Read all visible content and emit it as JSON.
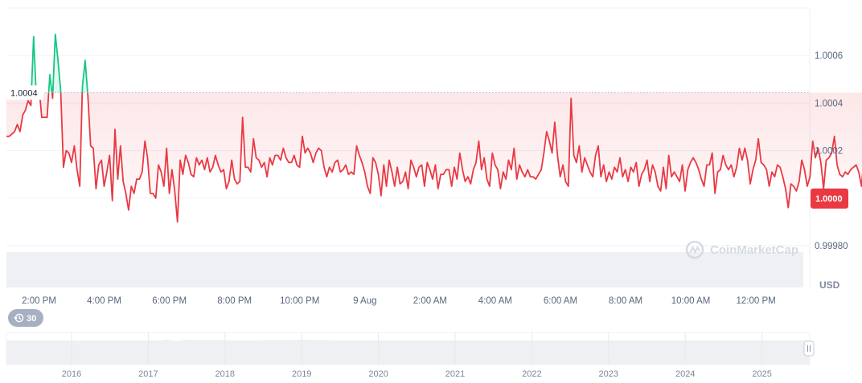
{
  "chart_data": {
    "type": "line",
    "currency_label": "USD",
    "watermark": "CoinMarketCap",
    "time_range_label": "30",
    "reference_label": "1.0004",
    "current_label": "1.0000",
    "y_ticks": [
      "1.0006",
      "1.0004",
      "1.0002",
      "1.0000",
      "0.99980"
    ],
    "y_tick_values": [
      1.0006,
      1.0004,
      1.0002,
      1.0,
      0.9998
    ],
    "ylim": [
      0.9998,
      1.0008
    ],
    "reference_value": 1.000444,
    "x_ticks": [
      "2:00 PM",
      "4:00 PM",
      "6:00 PM",
      "8:00 PM",
      "10:00 PM",
      "9 Aug",
      "2:00 AM",
      "4:00 AM",
      "6:00 AM",
      "8:00 AM",
      "10:00 AM",
      "12:00 PM"
    ],
    "x_tick_hours": [
      0,
      2,
      4,
      6,
      8,
      10,
      12,
      14,
      16,
      18,
      20,
      22
    ],
    "xlim_hours": [
      -1.0,
      23.65
    ],
    "series": [
      {
        "x_step_hours": 0.0833,
        "values": [
          1.00026,
          1.00026,
          1.00027,
          1.00028,
          1.00031,
          1.00028,
          1.00035,
          1.00037,
          1.00041,
          1.00039,
          1.00068,
          1.00043,
          1.00047,
          1.00034,
          1.00034,
          1.00034,
          1.00052,
          1.00042,
          1.00069,
          1.00058,
          1.00045,
          1.00013,
          1.0002,
          1.00019,
          1.00015,
          1.00022,
          1.00012,
          1.00005,
          1.00047,
          1.00058,
          1.00043,
          1.00022,
          1.00021,
          1.00004,
          1.00014,
          1.00016,
          1.00005,
          1.00011,
          1.00018,
          0.99999,
          1.00029,
          1.00008,
          1.00022,
          1.00007,
          1.00002,
          0.99995,
          1.00005,
          1.00002,
          1.00008,
          1.00008,
          1.00011,
          1.00024,
          1.00017,
          1.00002,
          1.00002,
          1.0,
          1.00014,
          1.00011,
          1.00005,
          1.00021,
          1.00002,
          1.00012,
          1.00003,
          0.9999,
          1.00016,
          1.0001,
          1.00018,
          1.00015,
          1.0001,
          1.00009,
          1.00017,
          1.00014,
          1.00016,
          1.00012,
          1.00017,
          1.00011,
          1.00013,
          1.00018,
          1.00014,
          1.00011,
          1.00012,
          1.00004,
          1.00007,
          1.00016,
          1.00008,
          1.00006,
          1.00007,
          1.00034,
          1.00013,
          1.00013,
          1.00011,
          1.00025,
          1.00017,
          1.00016,
          1.00013,
          1.00015,
          1.00009,
          1.00017,
          1.00014,
          1.00018,
          1.00018,
          1.00016,
          1.00021,
          1.00017,
          1.00015,
          1.00015,
          1.00018,
          1.00014,
          1.00013,
          1.00026,
          1.00019,
          1.00021,
          1.00019,
          1.00015,
          1.00019,
          1.00021,
          1.0002,
          1.00013,
          1.00009,
          1.00013,
          1.00011,
          1.00015,
          1.00016,
          1.00011,
          1.00012,
          1.00014,
          1.0001,
          1.00011,
          1.0001,
          1.00022,
          1.00018,
          1.00015,
          1.00011,
          1.00005,
          1.00002,
          1.00017,
          1.00015,
          1.0001,
          1.00001,
          1.00014,
          1.00005,
          1.00016,
          1.00011,
          1.00005,
          1.00013,
          1.00006,
          1.00007,
          1.00011,
          1.00004,
          1.00016,
          1.00013,
          1.00009,
          1.00013,
          1.00014,
          1.00005,
          1.00015,
          1.00012,
          1.00008,
          1.00014,
          1.00004,
          1.0001,
          1.0001,
          1.00012,
          1.00012,
          1.00005,
          1.00013,
          1.00008,
          1.00019,
          1.00012,
          1.00007,
          1.00009,
          1.00006,
          1.00012,
          1.00015,
          1.00024,
          1.00012,
          1.00017,
          1.00008,
          1.00005,
          1.00019,
          1.00014,
          1.00012,
          1.00004,
          1.00011,
          1.00008,
          1.00016,
          1.00012,
          1.00021,
          1.00008,
          1.00014,
          1.00011,
          1.00009,
          1.00012,
          1.00009,
          1.00009,
          1.00008,
          1.0001,
          1.00012,
          1.00019,
          1.00028,
          1.00024,
          1.00019,
          1.00032,
          1.00018,
          1.00009,
          1.00014,
          1.00007,
          1.00005,
          1.00042,
          1.00018,
          1.00015,
          1.00022,
          1.00011,
          1.00017,
          1.00014,
          1.00011,
          1.00009,
          1.00018,
          1.00022,
          1.00009,
          1.00014,
          1.00007,
          1.00011,
          1.00008,
          1.00013,
          1.00011,
          1.00017,
          1.00009,
          1.00012,
          1.00007,
          1.00013,
          1.00011,
          1.00015,
          1.00005,
          1.0001,
          1.00012,
          1.00016,
          1.00007,
          1.00014,
          1.00011,
          1.00005,
          1.00003,
          1.00013,
          1.00004,
          1.00018,
          1.00009,
          1.00011,
          1.00009,
          1.00007,
          1.00014,
          1.00003,
          1.00012,
          1.00015,
          1.00017,
          1.00015,
          1.00012,
          1.00008,
          1.00005,
          1.00014,
          1.00014,
          1.00019,
          1.00002,
          1.00011,
          1.00012,
          1.00018,
          1.00014,
          1.00012,
          1.00014,
          1.00009,
          1.00013,
          1.00021,
          1.00016,
          1.00021,
          1.00016,
          1.00006,
          1.00012,
          1.00016,
          1.00025,
          1.00015,
          1.00014,
          1.00012,
          1.00005,
          1.00011,
          1.00009,
          1.00014,
          1.00013,
          1.00009,
          1.00004,
          0.99996,
          1.00006,
          1.00005,
          1.00003,
          1.00007,
          1.00016,
          1.00012,
          1.00005,
          1.00009,
          1.00024,
          1.00017,
          1.00021,
          1.00015,
          1.00004,
          1.00016,
          1.00017,
          1.00019,
          1.00026,
          1.00014,
          1.0001,
          1.00009,
          1.00011,
          1.0001,
          1.00012,
          1.00013,
          1.00014,
          1.00011,
          1.00005,
          1.00018,
          1.00011,
          1.00011,
          1.00015,
          1.00012,
          1.00016,
          1.00013,
          1.00016,
          1.00013,
          1.00018,
          1.00016,
          1.00019,
          1.00013,
          1.00023,
          1.0003,
          1.00016,
          1.00015,
          1.00011,
          1.00019,
          1.00016,
          1.00009,
          1.00019,
          1.00015,
          1.00011,
          1.00016,
          1.00026,
          1.00016,
          1.00021,
          1.00011,
          1.00003,
          1.0002,
          1.00028,
          1.00016,
          1.00014,
          1.00017,
          1.00012,
          1.00016,
          1.00027,
          1.00019,
          1.00025,
          1.00018,
          1.00016,
          1.0001,
          1.00018,
          1.0002,
          1.00022,
          1.0003,
          1.00016,
          1.00004,
          1.00015,
          1.00009,
          1.00015,
          1.00062,
          1.00024,
          1.00018,
          1.00022,
          1.0004,
          1.00032,
          1.00018,
          1.00012,
          1.00018,
          1.00017,
          1.00013,
          1.00012,
          1.00011,
          1.00016,
          1.00028,
          1.00011,
          1.00008,
          1.00019,
          1.00004,
          1.00007,
          1.00011,
          1.00013,
          1.00016,
          1.00012,
          1.00005,
          1.00009,
          1.00004,
          1.00011,
          1.00016,
          1.00009,
          1.00007,
          1.00009,
          1.00004,
          1.00002,
          1.00009,
          1.00007,
          1.00009,
          1.00019,
          1.00014,
          1.00009,
          1.0001,
          1.00014,
          1.00014,
          1.00007,
          1.00016,
          1.00012,
          1.00023,
          1.00024,
          1.00023,
          1.00019,
          1.00019,
          1.00015,
          1.00008,
          1.00013,
          1.00006,
          1.00004,
          1.00011,
          1.00004,
          1.00011,
          1.00015,
          1.00009,
          1.00016,
          1.00019,
          1.00008,
          1.00013,
          1.00005,
          1.00014,
          1.00006,
          1.00013,
          1.00006,
          1.00006,
          1.00012,
          1.00009,
          1.00012,
          1.00013,
          1.00016,
          1.00019,
          1.00009,
          1.00017,
          1.00011,
          1.00007,
          1.00015,
          1.0001,
          1.00018,
          1.00014,
          1.00011,
          1.00009,
          1.00011,
          1.00008,
          1.00008,
          1.00011,
          1.00016,
          1.00006,
          1.00018,
          1.00017,
          1.00011,
          1.0001,
          1.00009,
          1.00006,
          1.00007,
          1.00004,
          1.00009,
          1.0001,
          1.0001,
          1.00012,
          1.00015,
          1.00012,
          1.00017,
          1.00015,
          1.00007,
          1.00016,
          1.0001,
          1.00011,
          1.00017,
          1.00015,
          1.00007,
          1.00015,
          1.00006,
          1.00011,
          1.0001,
          1.00016,
          1.00013,
          1.0001,
          1.00012,
          1.00019,
          1.00013,
          1.00016,
          1.00008,
          1.00011,
          1.00014,
          1.00003,
          1.0001,
          1.00009,
          1.00007,
          1.00014,
          1.00004,
          1.0001,
          1.00022,
          1.00029,
          1.00042,
          1.0002
        ]
      }
    ]
  }
}
